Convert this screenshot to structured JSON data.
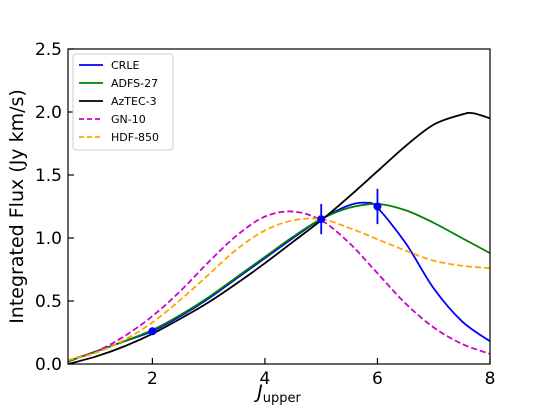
{
  "chart_data": {
    "type": "line",
    "title": "",
    "xlabel_main": "J",
    "xlabel_sub": "upper",
    "ylabel": "Integrated Flux (Jy km/s)",
    "xlim": [
      0.5,
      8
    ],
    "ylim": [
      0,
      2.5
    ],
    "xticks": [
      2,
      4,
      6,
      8
    ],
    "xtick_labels": [
      "2",
      "4",
      "6",
      "8"
    ],
    "yticks": [
      0,
      0.5,
      1.0,
      1.5,
      2.0,
      2.5
    ],
    "ytick_labels": [
      "0.0",
      "0.5",
      "1.0",
      "1.5",
      "2.0",
      "2.5"
    ],
    "grid": false,
    "legend_position": "top-left",
    "series": [
      {
        "name": "CRLE",
        "color": "#0000ff",
        "style": "solid",
        "x": [
          0.5,
          1,
          1.5,
          2,
          2.5,
          3,
          3.5,
          4,
          4.5,
          5,
          5.5,
          5.8,
          6,
          6.5,
          7,
          7.5,
          8
        ],
        "y": [
          0.02,
          0.1,
          0.18,
          0.26,
          0.38,
          0.52,
          0.68,
          0.84,
          1.0,
          1.15,
          1.26,
          1.28,
          1.24,
          0.96,
          0.6,
          0.34,
          0.18
        ]
      },
      {
        "name": "ADFS-27",
        "color": "#008000",
        "style": "solid",
        "x": [
          0.5,
          1,
          1.5,
          2,
          2.5,
          3,
          3.5,
          4,
          4.5,
          5,
          5.5,
          6,
          6.5,
          7,
          7.5,
          8
        ],
        "y": [
          0.02,
          0.1,
          0.18,
          0.27,
          0.39,
          0.53,
          0.69,
          0.85,
          1.01,
          1.15,
          1.24,
          1.27,
          1.22,
          1.12,
          1.0,
          0.88
        ]
      },
      {
        "name": "AzTEC-3",
        "color": "#000000",
        "style": "solid",
        "x": [
          0.5,
          1,
          1.5,
          2,
          2.5,
          3,
          3.5,
          4,
          4.5,
          5,
          5.5,
          6,
          6.5,
          7,
          7.5,
          7.7,
          8
        ],
        "y": [
          0.0,
          0.06,
          0.14,
          0.24,
          0.36,
          0.49,
          0.64,
          0.8,
          0.97,
          1.14,
          1.33,
          1.53,
          1.73,
          1.9,
          1.98,
          1.99,
          1.95
        ]
      },
      {
        "name": "GN-10",
        "color": "#cc00cc",
        "style": "dashed",
        "x": [
          0.5,
          1,
          1.5,
          2,
          2.5,
          3,
          3.5,
          4,
          4.5,
          5,
          5.5,
          6,
          6.5,
          7,
          7.5,
          8
        ],
        "y": [
          0.03,
          0.1,
          0.22,
          0.38,
          0.58,
          0.81,
          1.02,
          1.17,
          1.21,
          1.14,
          0.96,
          0.72,
          0.48,
          0.29,
          0.16,
          0.08
        ]
      },
      {
        "name": "HDF-850",
        "color": "#ffa500",
        "style": "dashed",
        "x": [
          0.5,
          1,
          1.5,
          2,
          2.5,
          3,
          3.5,
          4,
          4.5,
          5,
          5.5,
          6,
          6.5,
          7,
          7.5,
          8
        ],
        "y": [
          0.03,
          0.09,
          0.19,
          0.33,
          0.51,
          0.71,
          0.91,
          1.06,
          1.14,
          1.15,
          1.08,
          0.99,
          0.9,
          0.82,
          0.78,
          0.76
        ]
      }
    ],
    "observations": {
      "color": "#0000ff",
      "points": [
        {
          "x": 2,
          "y": 0.26,
          "yerr": 0.03
        },
        {
          "x": 5,
          "y": 1.15,
          "yerr": 0.12
        },
        {
          "x": 6,
          "y": 1.25,
          "yerr": 0.14
        }
      ]
    }
  }
}
